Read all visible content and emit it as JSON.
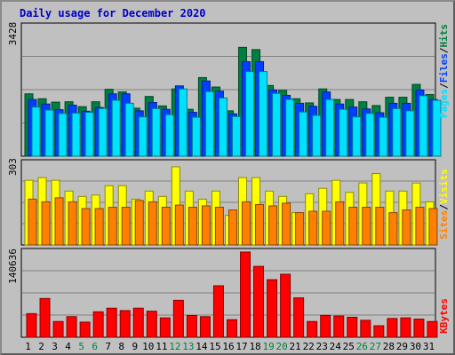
{
  "title": "Daily usage for December 2020",
  "colors": {
    "background": "#c0c0c0",
    "title": "#0000c8",
    "hits": "#008040",
    "files": "#0040ff",
    "pages": "#00e0ff",
    "visits": "#ffff00",
    "sites": "#ff8000",
    "kbytes": "#ff0000",
    "weekend_label": "#008040",
    "weekday_label": "#000000"
  },
  "labels": {
    "hits": "Hits",
    "files": "Files",
    "pages": "Pages",
    "visits": "Visits",
    "sites": "Sites",
    "kbytes": "KBytes",
    "sep": "/"
  },
  "chart_data": [
    {
      "type": "bar",
      "panel": "top",
      "y_max_label": "3428",
      "ylim": [
        0,
        3428
      ],
      "categories": [
        "1",
        "2",
        "3",
        "4",
        "5",
        "6",
        "7",
        "8",
        "9",
        "10",
        "11",
        "12",
        "13",
        "14",
        "15",
        "16",
        "17",
        "18",
        "19",
        "20",
        "21",
        "22",
        "23",
        "24",
        "25",
        "26",
        "27",
        "28",
        "29",
        "30",
        "31"
      ],
      "weekend_days": [
        5,
        6,
        12,
        13,
        19,
        20,
        26,
        27
      ],
      "series": [
        {
          "name": "Hits",
          "values": [
            1650,
            1520,
            1430,
            1440,
            1310,
            1440,
            1770,
            1700,
            1270,
            1580,
            1330,
            1780,
            1240,
            2080,
            1830,
            1200,
            2880,
            2820,
            1870,
            1740,
            1520,
            1410,
            1780,
            1500,
            1500,
            1440,
            1340,
            1560,
            1560,
            1900,
            1630
          ]
        },
        {
          "name": "Files",
          "values": [
            1500,
            1380,
            1230,
            1350,
            1190,
            1290,
            1650,
            1650,
            1200,
            1420,
            1240,
            1860,
            1160,
            1990,
            1720,
            1120,
            2500,
            2500,
            1750,
            1610,
            1400,
            1320,
            1700,
            1380,
            1300,
            1250,
            1150,
            1400,
            1400,
            1750,
            1500
          ]
        },
        {
          "name": "Pages",
          "values": [
            1300,
            1220,
            1130,
            1140,
            1160,
            1260,
            1480,
            1400,
            1040,
            1260,
            1100,
            1780,
            1030,
            1710,
            1540,
            1050,
            2240,
            2240,
            1660,
            1500,
            1170,
            1080,
            1500,
            1240,
            1040,
            1130,
            1030,
            1260,
            1200,
            1600,
            1480
          ]
        }
      ]
    },
    {
      "type": "bar",
      "panel": "middle",
      "y_max_label": "303",
      "ylim": [
        0,
        303
      ],
      "categories": [
        "1",
        "2",
        "3",
        "4",
        "5",
        "6",
        "7",
        "8",
        "9",
        "10",
        "11",
        "12",
        "13",
        "14",
        "15",
        "16",
        "17",
        "18",
        "19",
        "20",
        "21",
        "22",
        "23",
        "24",
        "25",
        "26",
        "27",
        "28",
        "29",
        "30",
        "31"
      ],
      "series": [
        {
          "name": "Visits",
          "values": [
            240,
            250,
            240,
            200,
            180,
            185,
            220,
            220,
            170,
            200,
            180,
            290,
            200,
            170,
            200,
            110,
            250,
            250,
            200,
            180,
            120,
            190,
            210,
            240,
            195,
            230,
            265,
            200,
            200,
            230,
            160
          ]
        },
        {
          "name": "Sites",
          "values": [
            170,
            160,
            175,
            160,
            135,
            135,
            140,
            140,
            165,
            160,
            140,
            148,
            140,
            145,
            140,
            130,
            160,
            150,
            145,
            155,
            120,
            125,
            125,
            160,
            140,
            140,
            140,
            120,
            130,
            140,
            135
          ]
        }
      ]
    },
    {
      "type": "bar",
      "panel": "bottom",
      "y_max_label": "140636",
      "ylim": [
        0,
        140636
      ],
      "categories": [
        "1",
        "2",
        "3",
        "4",
        "5",
        "6",
        "7",
        "8",
        "9",
        "10",
        "11",
        "12",
        "13",
        "14",
        "15",
        "16",
        "17",
        "18",
        "19",
        "20",
        "21",
        "22",
        "23",
        "24",
        "25",
        "26",
        "27",
        "28",
        "29",
        "30",
        "31"
      ],
      "series": [
        {
          "name": "KBytes",
          "values": [
            39000,
            64000,
            26000,
            34000,
            25000,
            42000,
            48000,
            44000,
            48000,
            43000,
            32000,
            61000,
            36000,
            34000,
            85000,
            29000,
            140636,
            117000,
            95000,
            104000,
            65000,
            26000,
            36000,
            35000,
            33000,
            28000,
            19000,
            31000,
            32000,
            30000,
            26000
          ]
        }
      ]
    }
  ]
}
